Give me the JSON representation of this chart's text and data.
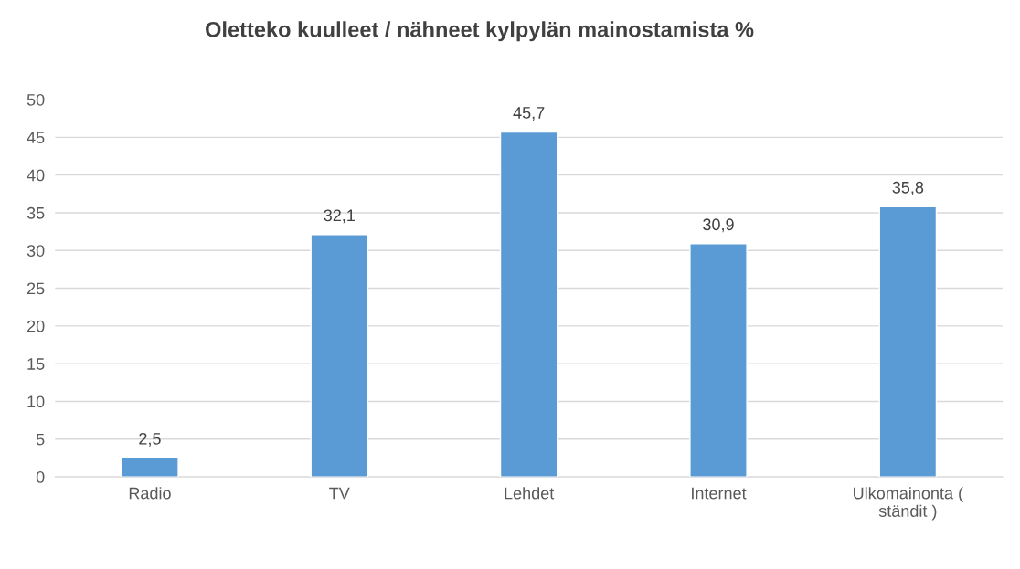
{
  "chart_data": {
    "type": "bar",
    "title": "Oletteko kuulleet / nähneet kylpylän mainostamista %",
    "categories": [
      "Radio",
      "TV",
      "Lehdet",
      "Internet",
      "Ulkomainonta (\nständit )"
    ],
    "values": [
      2.5,
      32.1,
      45.7,
      30.9,
      35.8
    ],
    "value_labels": [
      "2,5",
      "32,1",
      "45,7",
      "30,9",
      "35,8"
    ],
    "color": "#5b9bd5",
    "ylim": [
      0,
      50
    ],
    "yticks": [
      0,
      5,
      10,
      15,
      20,
      25,
      30,
      35,
      40,
      45,
      50
    ],
    "grid": "y",
    "legend": false
  }
}
